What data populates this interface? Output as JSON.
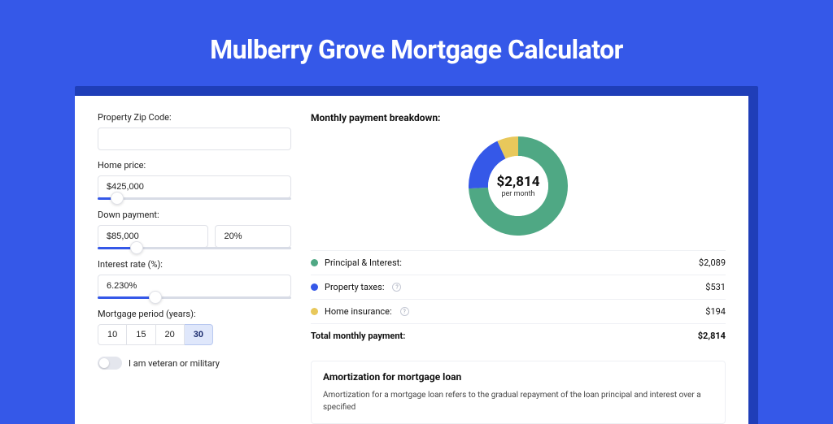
{
  "colors": {
    "page_bg": "#3558e8",
    "shadow_bg": "#1f3eb8",
    "panel_bg": "#ffffff",
    "input_border": "#e0e2e8",
    "slider_track": "#d8dce6",
    "slider_fill": "#3558e8",
    "divider": "#eef0f4"
  },
  "title": "Mulberry Grove Mortgage Calculator",
  "form": {
    "zip": {
      "label": "Property Zip Code:",
      "value": ""
    },
    "home_price": {
      "label": "Home price:",
      "value": "$425,000",
      "slider_pct": 10
    },
    "down_payment": {
      "label": "Down payment:",
      "amount": "$85,000",
      "pct": "20%",
      "slider_pct": 20
    },
    "interest_rate": {
      "label": "Interest rate (%):",
      "value": "6.230%",
      "slider_pct": 30
    },
    "mortgage_period": {
      "label": "Mortgage period (years):",
      "options": [
        "10",
        "15",
        "20",
        "30"
      ],
      "selected_index": 3
    },
    "veteran": {
      "label": "I am veteran or military",
      "checked": false
    }
  },
  "breakdown": {
    "title": "Monthly payment breakdown:",
    "donut": {
      "type": "donut",
      "amount_label": "$2,814",
      "sub_label": "per month",
      "thickness": 24,
      "background_color": "#ffffff",
      "slices": [
        {
          "label": "Principal & Interest",
          "value": 2089,
          "pct": 74.2,
          "color": "#4fa884"
        },
        {
          "label": "Property taxes",
          "value": 531,
          "pct": 18.9,
          "color": "#3558e8"
        },
        {
          "label": "Home insurance",
          "value": 194,
          "pct": 6.9,
          "color": "#e8c85b"
        }
      ]
    },
    "rows": [
      {
        "label": "Principal & Interest:",
        "value": "$2,089",
        "dot": "#4fa884",
        "info": false
      },
      {
        "label": "Property taxes:",
        "value": "$531",
        "dot": "#3558e8",
        "info": true
      },
      {
        "label": "Home insurance:",
        "value": "$194",
        "dot": "#e8c85b",
        "info": true
      }
    ],
    "total": {
      "label": "Total monthly payment:",
      "value": "$2,814"
    }
  },
  "amortization": {
    "title": "Amortization for mortgage loan",
    "text": "Amortization for a mortgage loan refers to the gradual repayment of the loan principal and interest over a specified"
  }
}
